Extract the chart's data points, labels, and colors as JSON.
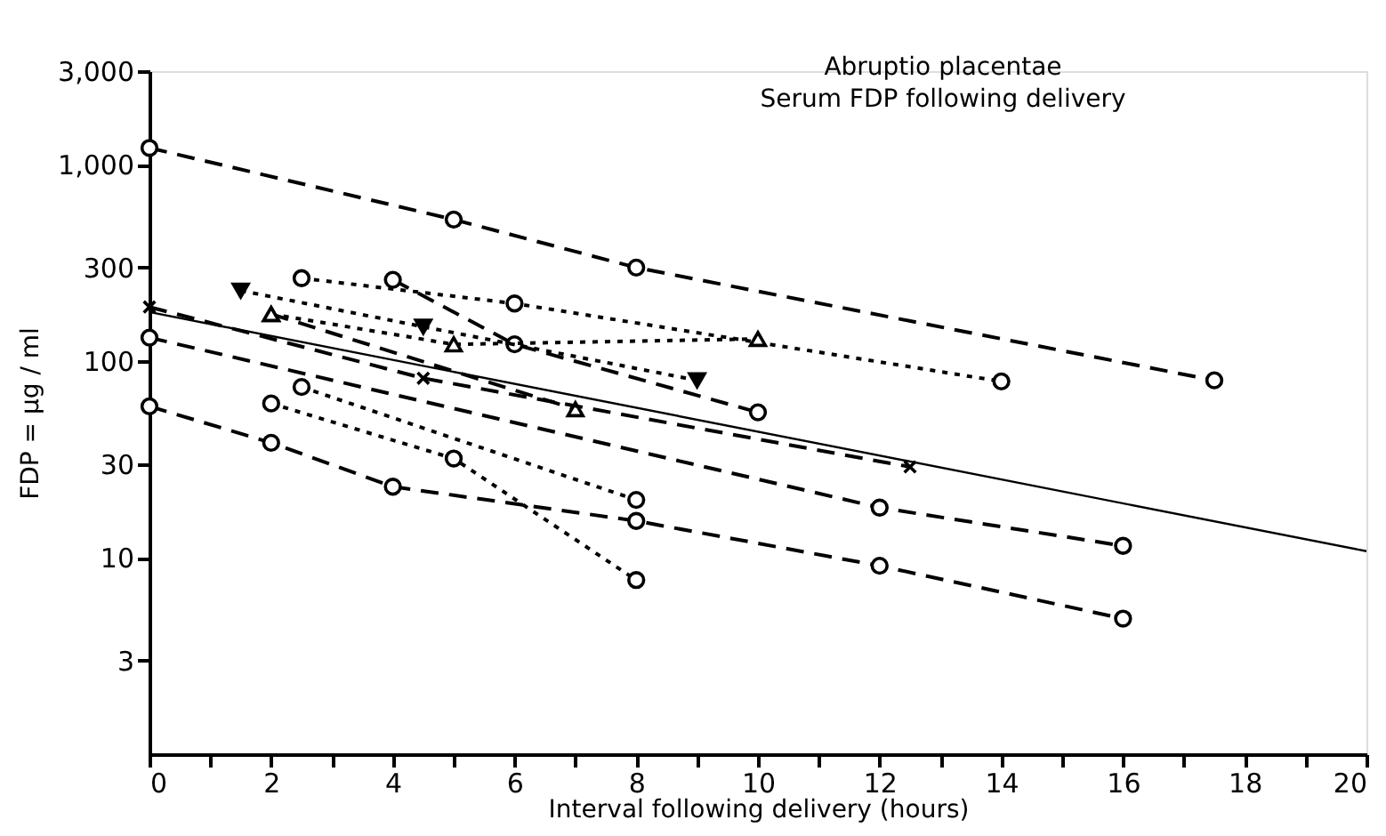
{
  "chart_data": {
    "type": "line",
    "title": "Abruptio placentae",
    "subtitle": "Serum FDP following delivery",
    "xlabel": "Interval following delivery (hours)",
    "ylabel": "FDP = µg / ml",
    "log": "y",
    "grid": false,
    "legend": false,
    "xlim": [
      0,
      20
    ],
    "xticks": [
      0,
      {
        "value": 1,
        "label": null
      },
      2,
      {
        "value": 3,
        "label": null
      },
      4,
      {
        "value": 5,
        "label": null
      },
      6,
      {
        "value": 7,
        "label": null
      },
      8,
      {
        "value": 9,
        "label": null
      },
      10,
      {
        "value": 11,
        "label": null
      },
      12,
      {
        "value": 13,
        "label": null
      },
      14,
      {
        "value": 15,
        "label": null
      },
      16,
      {
        "value": 17,
        "label": null
      },
      18,
      {
        "value": 19,
        "label": null
      },
      20
    ],
    "ylim": [
      1,
      3000
    ],
    "yticks": [
      3,
      10,
      30,
      100,
      300,
      {
        "value": 1000,
        "label": "1,000"
      },
      {
        "value": 3000,
        "label": "3,000"
      }
    ],
    "series": [
      {
        "color": "#000000",
        "marker": "circle",
        "line_style": "dashed",
        "x": [
          0,
          5,
          8,
          17.5
        ],
        "values": [
          1220,
          527,
          300,
          80
        ]
      },
      {
        "color": "#000000",
        "marker": "circle",
        "line_style": "dotted",
        "x": [
          2.5,
          6,
          14
        ],
        "values": [
          265,
          197,
          79
        ]
      },
      {
        "color": "#000000",
        "marker": "circle",
        "line_style": "dashed",
        "x": [
          4,
          6,
          10
        ],
        "values": [
          260,
          122,
          55
        ]
      },
      {
        "color": "#000000",
        "marker": "triangle-down",
        "line_style": "dotted",
        "x": [
          1.5,
          4.5,
          9
        ],
        "values": [
          229,
          150,
          80
        ]
      },
      {
        "color": "#000000",
        "marker": "triangle",
        "line_style": "dotted",
        "x": [
          2,
          5,
          10
        ],
        "values": [
          174,
          122,
          130
        ]
      },
      {
        "color": "#000000",
        "marker": "triangle",
        "line_style": "dashed",
        "x": [
          2,
          7
        ],
        "values": [
          174,
          57
        ]
      },
      {
        "color": "#000000",
        "marker": "cross",
        "line_style": "dashed",
        "x": [
          0,
          4.5,
          12.5
        ],
        "values": [
          189,
          82,
          29
        ]
      },
      {
        "color": "#000000",
        "marker": "circle",
        "line_style": "dashed",
        "x": [
          0,
          12,
          16
        ],
        "values": [
          132,
          18,
          11.5
        ]
      },
      {
        "color": "#000000",
        "marker": "circle",
        "line_style": "dashed",
        "x": [
          0,
          2,
          4,
          8,
          12,
          16
        ],
        "values": [
          59,
          38.5,
          23,
          15.4,
          9.1,
          4.9
        ]
      },
      {
        "color": "#000000",
        "marker": "circle",
        "line_style": "dotted",
        "x": [
          2,
          5,
          8
        ],
        "values": [
          61,
          32,
          7.7
        ]
      },
      {
        "color": "#000000",
        "marker": "circle",
        "line_style": "dotted",
        "x": [
          2.5,
          8
        ],
        "values": [
          74,
          19.7
        ]
      },
      {
        "color": "#000000",
        "marker": "none",
        "line_style": "solid",
        "x": [
          0,
          20
        ],
        "values": [
          178,
          10.8
        ]
      }
    ]
  }
}
